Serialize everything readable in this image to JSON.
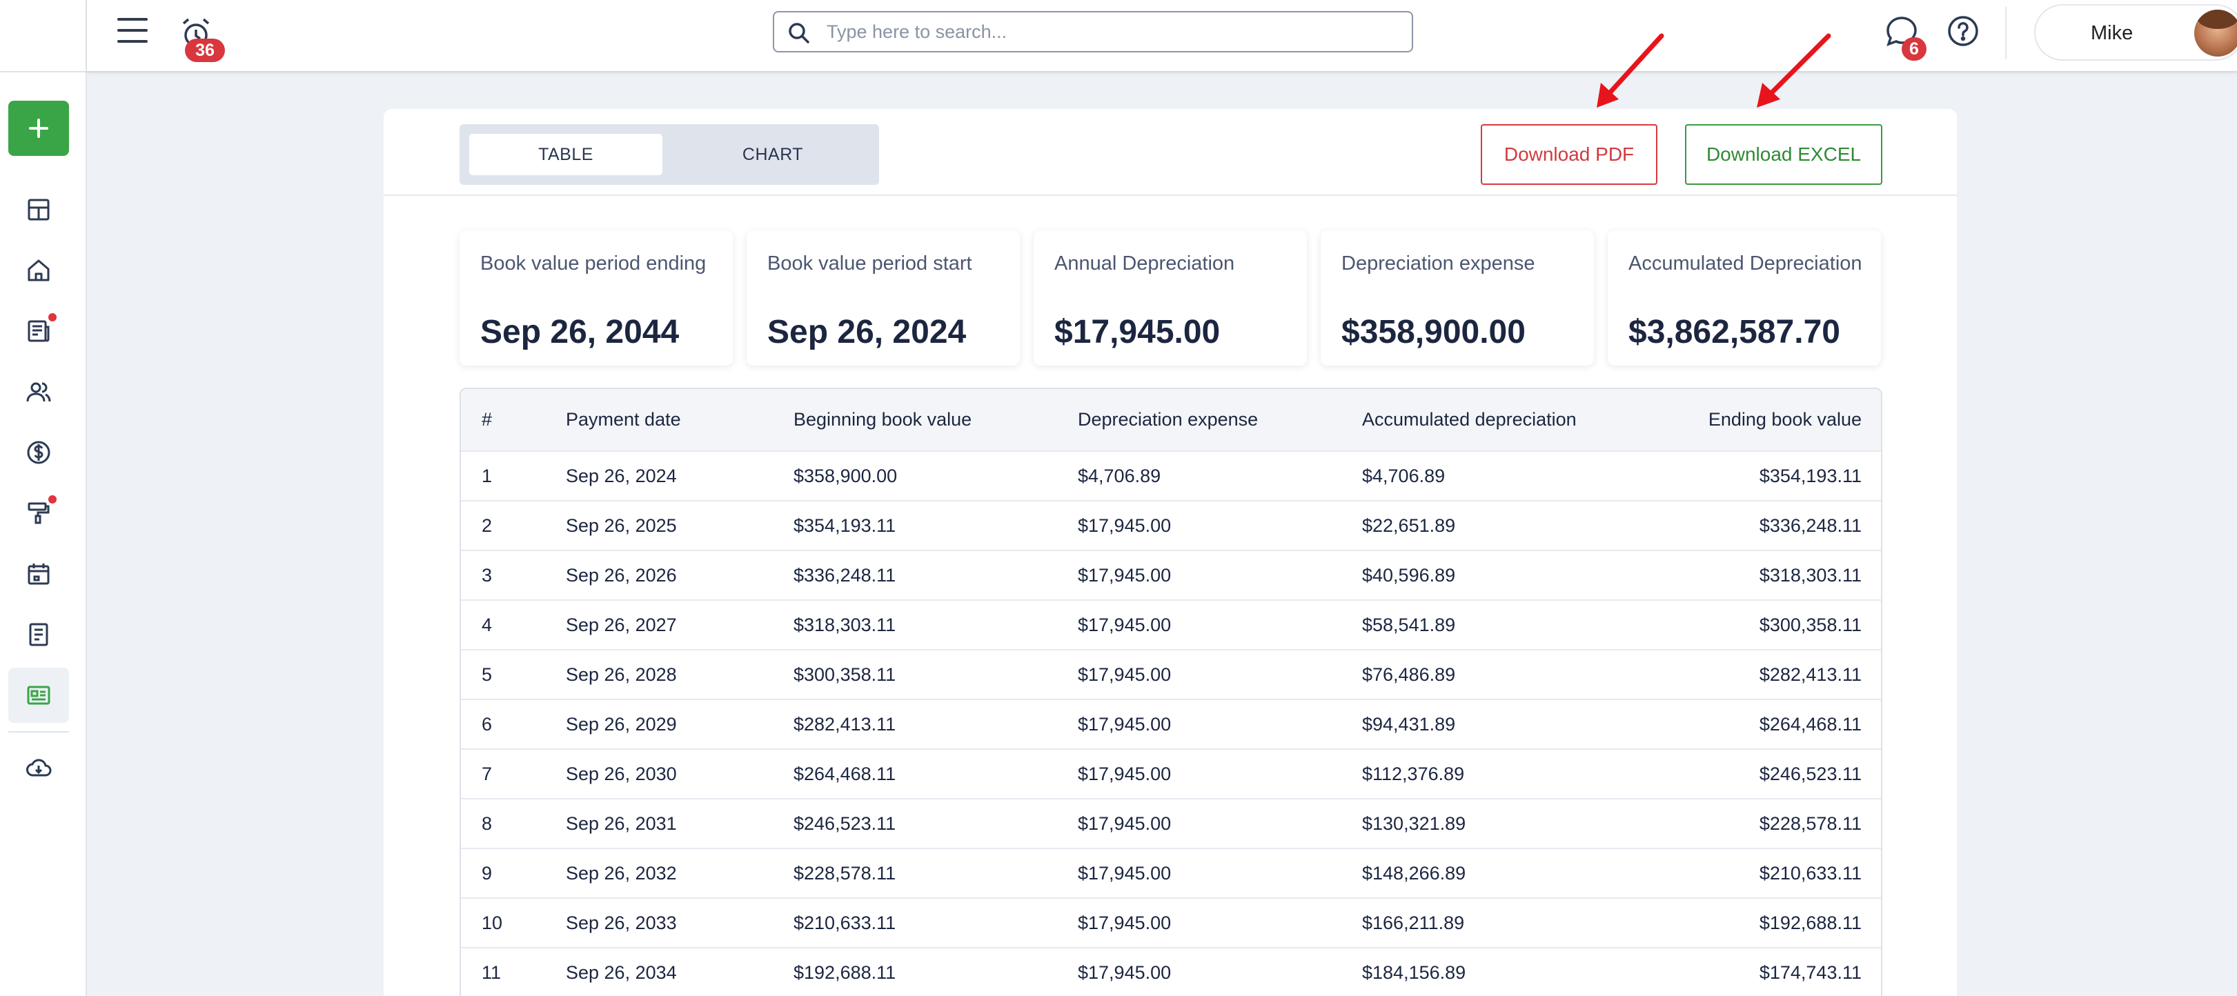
{
  "header": {
    "alarm_badge": "36",
    "search_placeholder": "Type here to search...",
    "chat_badge": "6",
    "user_name": "Mike"
  },
  "sidebar": {
    "items": [
      {
        "icon": "dashboard-grid-icon"
      },
      {
        "icon": "home-icon"
      },
      {
        "icon": "newspaper-icon",
        "dot": true
      },
      {
        "icon": "users-icon"
      },
      {
        "icon": "dollar-circle-icon"
      },
      {
        "icon": "paint-roller-icon",
        "dot": true
      },
      {
        "icon": "calendar-icon"
      },
      {
        "icon": "document-list-icon"
      },
      {
        "icon": "id-card-icon",
        "active": true
      },
      {
        "icon": "cloud-download-icon"
      }
    ]
  },
  "toolbar": {
    "tab_table": "TABLE",
    "tab_chart": "CHART",
    "download_pdf": "Download PDF",
    "download_excel": "Download EXCEL"
  },
  "kpis": [
    {
      "label": "Book value period ending",
      "value": "Sep 26, 2044"
    },
    {
      "label": "Book value period start",
      "value": "Sep 26, 2024"
    },
    {
      "label": "Annual Depreciation",
      "value": "$17,945.00"
    },
    {
      "label": "Depreciation expense",
      "value": "$358,900.00"
    },
    {
      "label": "Accumulated Depreciation",
      "value": "$3,862,587.70"
    }
  ],
  "table": {
    "headers": [
      "#",
      "Payment date",
      "Beginning book value",
      "Depreciation expense",
      "Accumulated depreciation",
      "Ending book value"
    ],
    "rows": [
      [
        "1",
        "Sep 26, 2024",
        "$358,900.00",
        "$4,706.89",
        "$4,706.89",
        "$354,193.11"
      ],
      [
        "2",
        "Sep 26, 2025",
        "$354,193.11",
        "$17,945.00",
        "$22,651.89",
        "$336,248.11"
      ],
      [
        "3",
        "Sep 26, 2026",
        "$336,248.11",
        "$17,945.00",
        "$40,596.89",
        "$318,303.11"
      ],
      [
        "4",
        "Sep 26, 2027",
        "$318,303.11",
        "$17,945.00",
        "$58,541.89",
        "$300,358.11"
      ],
      [
        "5",
        "Sep 26, 2028",
        "$300,358.11",
        "$17,945.00",
        "$76,486.89",
        "$282,413.11"
      ],
      [
        "6",
        "Sep 26, 2029",
        "$282,413.11",
        "$17,945.00",
        "$94,431.89",
        "$264,468.11"
      ],
      [
        "7",
        "Sep 26, 2030",
        "$264,468.11",
        "$17,945.00",
        "$112,376.89",
        "$246,523.11"
      ],
      [
        "8",
        "Sep 26, 2031",
        "$246,523.11",
        "$17,945.00",
        "$130,321.89",
        "$228,578.11"
      ],
      [
        "9",
        "Sep 26, 2032",
        "$228,578.11",
        "$17,945.00",
        "$148,266.89",
        "$210,633.11"
      ],
      [
        "10",
        "Sep 26, 2033",
        "$210,633.11",
        "$17,945.00",
        "$166,211.89",
        "$192,688.11"
      ],
      [
        "11",
        "Sep 26, 2034",
        "$192,688.11",
        "$17,945.00",
        "$184,156.89",
        "$174,743.11"
      ]
    ]
  },
  "colors": {
    "accent_green": "#3aa547",
    "danger_red": "#d6393f",
    "arrow_red": "#e8141b"
  }
}
